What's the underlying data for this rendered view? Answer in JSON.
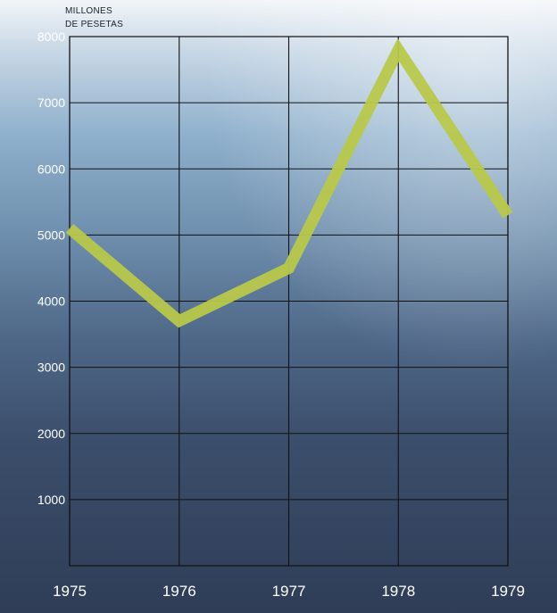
{
  "chart_data": {
    "type": "line",
    "ylabel_lines": [
      "MILLONES",
      "DE PESETAS"
    ],
    "x": [
      "1975",
      "1976",
      "1977",
      "1978",
      "1979"
    ],
    "yticks": [
      1000,
      2000,
      3000,
      4000,
      5000,
      6000,
      7000,
      8000
    ],
    "ylim": [
      0,
      8000
    ],
    "series": [
      {
        "values": [
          5100,
          3700,
          4500,
          7800,
          5300
        ]
      }
    ],
    "grid": true,
    "line_color": "#b8c84a"
  }
}
